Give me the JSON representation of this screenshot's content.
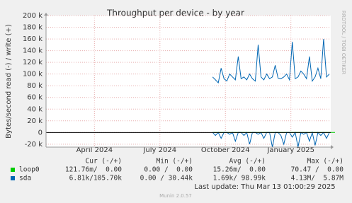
{
  "chart_data": {
    "type": "line",
    "title": "Throughput per device - by year",
    "y_label": "Bytes/second read (-) / write (+)",
    "side_text": "RRDTOOL / TOBI OETIKER",
    "ylim": [
      -25000,
      200000
    ],
    "yticks": [
      {
        "value": -20000,
        "label": "-20 k"
      },
      0,
      {
        "value": 20000,
        "label": "20 k"
      },
      {
        "value": 40000,
        "label": "40 k"
      },
      {
        "value": 60000,
        "label": "60 k"
      },
      {
        "value": 80000,
        "label": "80 k"
      },
      {
        "value": 100000,
        "label": "100 k"
      },
      {
        "value": 120000,
        "label": "120 k"
      },
      {
        "value": 140000,
        "label": "140 k"
      },
      {
        "value": 160000,
        "label": "160 k"
      },
      {
        "value": 180000,
        "label": "180 k"
      },
      {
        "value": 200000,
        "label": "200 k"
      }
    ],
    "xlim": [
      0,
      100
    ],
    "xticks": [
      {
        "value": 17,
        "label": "April 2024"
      },
      {
        "value": 40,
        "label": "July 2024"
      },
      {
        "value": 63,
        "label": "October 2024"
      },
      {
        "value": 86,
        "label": "January 2025"
      }
    ],
    "grid": true,
    "series": [
      {
        "name": "loop0",
        "color": "#00cc00",
        "values": [
          null,
          null,
          null,
          null,
          null,
          null,
          null,
          null,
          null,
          null,
          null,
          null,
          null,
          null,
          null,
          null,
          null,
          null,
          null,
          null,
          null,
          null,
          null,
          null,
          null,
          null,
          null,
          null,
          null,
          null,
          null,
          null,
          null,
          null,
          null,
          null,
          null,
          null,
          null,
          null,
          null,
          null,
          null,
          null,
          null,
          null,
          null,
          null,
          null,
          null,
          null,
          null,
          null,
          null,
          null,
          null,
          null,
          null,
          0,
          0,
          0,
          0,
          0,
          0,
          0,
          0,
          0,
          0,
          0,
          0,
          0,
          0,
          0,
          0,
          0,
          0,
          0,
          0,
          0,
          0,
          0,
          0,
          0,
          0,
          0,
          0,
          0,
          0,
          0,
          0,
          0,
          0,
          0,
          0,
          0,
          0,
          0,
          0,
          0,
          0,
          0,
          0
        ],
        "stats": [
          "121.76m/  0.00",
          "0.00 /  0.00",
          "15.26m/  0.00",
          "70.47 /  0.00"
        ]
      },
      {
        "name": "sda",
        "color": "#0066b3",
        "values": [
          null,
          null,
          null,
          null,
          null,
          null,
          null,
          null,
          null,
          null,
          null,
          null,
          null,
          null,
          null,
          null,
          null,
          null,
          null,
          null,
          null,
          null,
          null,
          null,
          null,
          null,
          null,
          null,
          null,
          null,
          null,
          null,
          null,
          null,
          null,
          null,
          null,
          null,
          null,
          null,
          null,
          null,
          null,
          null,
          null,
          null,
          null,
          null,
          null,
          null,
          null,
          null,
          null,
          null,
          null,
          null,
          null,
          null,
          95000,
          90000,
          85000,
          110000,
          92000,
          88000,
          100000,
          95000,
          90000,
          130000,
          92000,
          95000,
          90000,
          100000,
          92000,
          88000,
          150000,
          95000,
          90000,
          100000,
          92000,
          95000,
          115000,
          93000,
          92000,
          95000,
          100000,
          90000,
          155000,
          92000,
          95000,
          105000,
          100000,
          92000,
          130000,
          88000,
          95000,
          110000,
          92000,
          160000,
          95000,
          100000
        ],
        "read_values": [
          null,
          null,
          null,
          null,
          null,
          null,
          null,
          null,
          null,
          null,
          null,
          null,
          null,
          null,
          null,
          null,
          null,
          null,
          null,
          null,
          null,
          null,
          null,
          null,
          null,
          null,
          null,
          null,
          null,
          null,
          null,
          null,
          null,
          null,
          null,
          null,
          null,
          null,
          null,
          null,
          null,
          null,
          null,
          null,
          null,
          null,
          null,
          null,
          null,
          null,
          null,
          null,
          null,
          null,
          null,
          null,
          null,
          null,
          0,
          -5000,
          0,
          -10000,
          0,
          0,
          -3000,
          0,
          -15000,
          0,
          0,
          -5000,
          0,
          -20000,
          0,
          0,
          -3000,
          0,
          -10000,
          0,
          0,
          -25000,
          0,
          0,
          -5000,
          -20000,
          0,
          0,
          -8000,
          0,
          -25000,
          0,
          -3000,
          0,
          -15000,
          0,
          -22000,
          0,
          -5000,
          0,
          -10000,
          0
        ],
        "stats": [
          "6.81k/105.70k",
          "0.00 / 30.44k",
          "1.69k/ 98.99k",
          "4.13M/  5.87M"
        ]
      }
    ],
    "stat_headers": [
      "Cur (-/+)",
      "Min (-/+)",
      "Avg (-/+)",
      "Max (-/+)"
    ],
    "last_update": "Last update: Thu Mar 13 01:00:29 2025",
    "footer": "Munin 2.0.57"
  }
}
